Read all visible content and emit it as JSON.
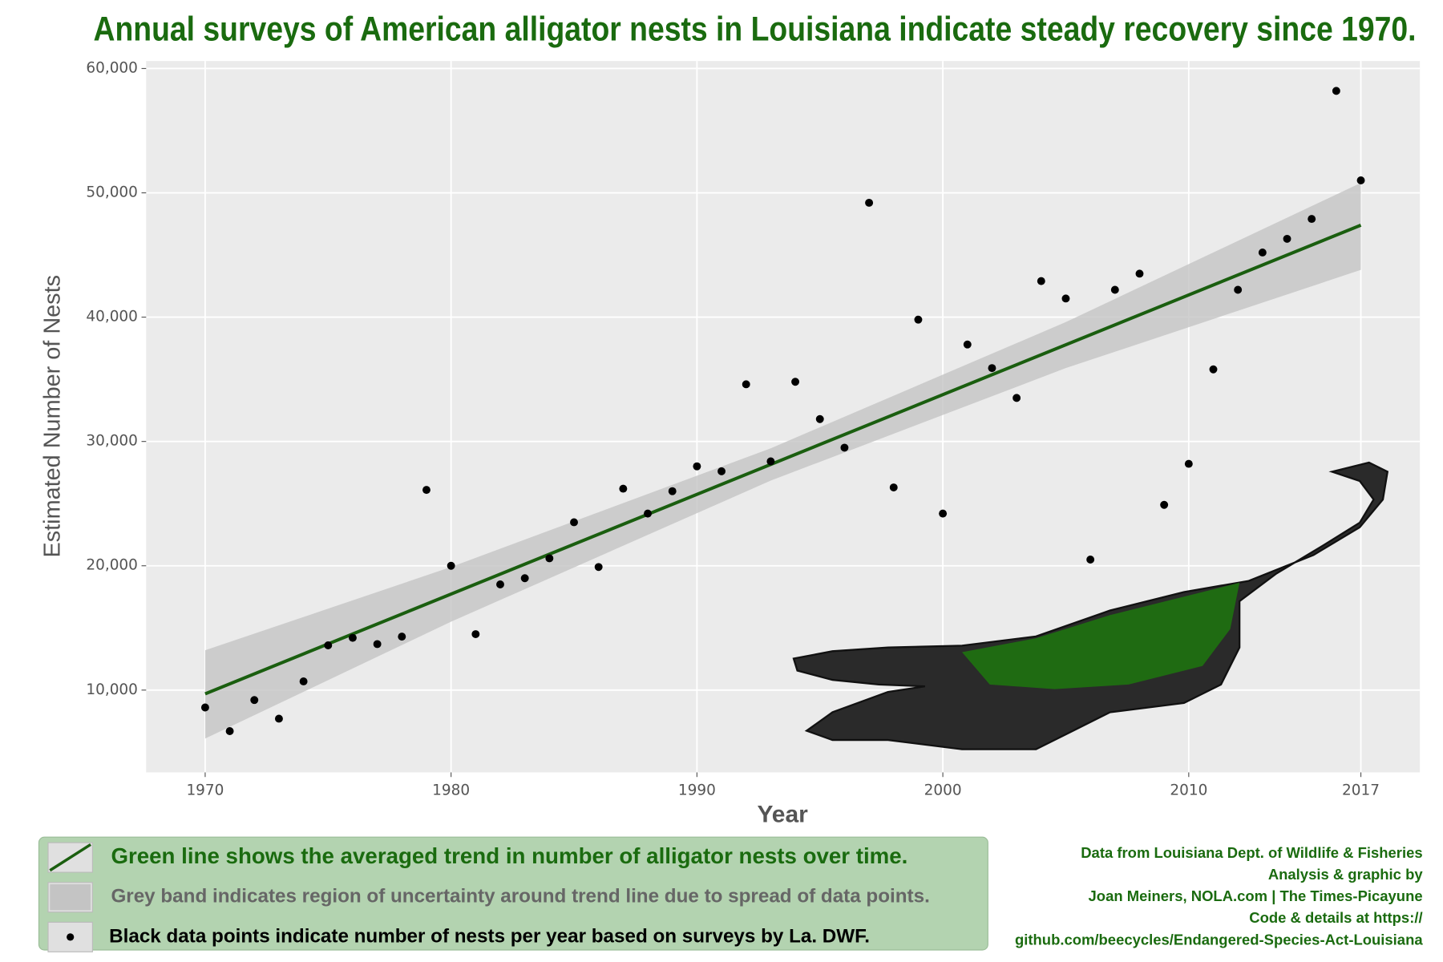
{
  "chart_data": {
    "type": "scatter",
    "title": "Annual surveys of American alligator nests in Louisiana indicate steady recovery since 1970.",
    "x_label": "Year",
    "y_label": "Estimated Number of Nests",
    "xlim": [
      1967.6,
      2019.4
    ],
    "ylim": [
      3380,
      60600
    ],
    "xticks": [
      1970,
      1980,
      1990,
      2000,
      2010,
      2017
    ],
    "yticks": [
      {
        "value": 10000,
        "label": "10,000"
      },
      {
        "value": 20000,
        "label": "20,000"
      },
      {
        "value": 30000,
        "label": "30,000"
      },
      {
        "value": 40000,
        "label": "40,000"
      },
      {
        "value": 50000,
        "label": "50,000"
      },
      {
        "value": 60000,
        "label": "60,000"
      }
    ],
    "grid": true,
    "series": [
      {
        "name": "Green line shows the averaged trend in number of alligator nests over time.",
        "type": "line",
        "color": "#1a5e0f",
        "x": [
          1970,
          2017
        ],
        "values": [
          9700,
          47400
        ]
      },
      {
        "name": "Grey band indicates region of uncertainty around trend line due to spread of data points.",
        "type": "band",
        "color": "#c4c4c4",
        "x": [
          1970,
          1980,
          1993,
          2005,
          2017
        ],
        "lower": [
          6100,
          15500,
          26850,
          35900,
          43800
        ],
        "upper": [
          13200,
          19900,
          29450,
          39600,
          50800
        ]
      },
      {
        "name": "Black data points indicate number of nests per year based on surveys by La. DWF.",
        "type": "scatter",
        "color": "#000000",
        "x": [
          1970,
          1971,
          1972,
          1973,
          1974,
          1975,
          1976,
          1977,
          1978,
          1979,
          1980,
          1981,
          1982,
          1983,
          1984,
          1985,
          1986,
          1987,
          1988,
          1989,
          1990,
          1991,
          1992,
          1993,
          1994,
          1995,
          1996,
          1997,
          1998,
          1999,
          2000,
          2001,
          2002,
          2003,
          2004,
          2005,
          2006,
          2007,
          2008,
          2009,
          2010,
          2011,
          2012,
          2013,
          2014,
          2015,
          2016,
          2017
        ],
        "values": [
          8600,
          6700,
          9200,
          7700,
          10700,
          13600,
          14200,
          13700,
          14300,
          26100,
          20000,
          14500,
          18500,
          19000,
          20600,
          23500,
          19900,
          26200,
          24200,
          26000,
          28000,
          27600,
          34600,
          28400,
          34800,
          31800,
          29500,
          49200,
          26300,
          39800,
          24200,
          37800,
          35900,
          33500,
          42900,
          41500,
          20500,
          42200,
          43500,
          24900,
          28200,
          35800,
          42200,
          45200,
          46300,
          47900,
          58200,
          51000
        ]
      }
    ],
    "source_notes": [
      "Data from Louisiana Dept. of Wildlife & Fisheries",
      "Analysis & graphic by",
      "Joan Meiners, NOLA.com | The Times-Picayune",
      "Code & details at https://",
      "github.com/beecycles/Endangered-Species-Act-Louisiana"
    ]
  }
}
